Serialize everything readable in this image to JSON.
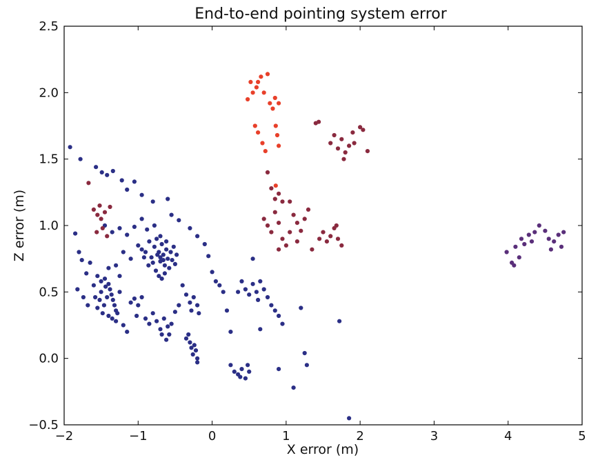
{
  "chart_data": {
    "type": "scatter",
    "title": "End-to-end pointing system error",
    "xlabel": "X error (m)",
    "ylabel": "Z error (m)",
    "xlim": [
      -2,
      5
    ],
    "ylim": [
      -0.5,
      2.5
    ],
    "xticks": [
      -2,
      -1,
      0,
      1,
      2,
      3,
      4,
      5
    ],
    "yticks": [
      -0.5,
      0.0,
      0.5,
      1.0,
      1.5,
      2.0,
      2.5
    ],
    "xtick_labels": [
      "−2",
      "−1",
      "0",
      "1",
      "2",
      "3",
      "4",
      "5"
    ],
    "ytick_labels": [
      "−0.5",
      "0.0",
      "0.5",
      "1.0",
      "1.5",
      "2.0",
      "2.5"
    ],
    "grid": false,
    "colors": {
      "blue": "#2b2f86",
      "purple": "#5a2f7a",
      "maroon": "#8a2a3f",
      "red": "#e8402a"
    },
    "series": [
      {
        "color": "#2b2f86",
        "points": [
          [
            -1.92,
            1.59
          ],
          [
            -1.78,
            1.5
          ],
          [
            -1.85,
            0.94
          ],
          [
            -1.8,
            0.8
          ],
          [
            -1.76,
            0.74
          ],
          [
            -1.7,
            0.64
          ],
          [
            -1.82,
            0.52
          ],
          [
            -1.74,
            0.46
          ],
          [
            -1.68,
            0.4
          ],
          [
            -1.65,
            0.72
          ],
          [
            -1.57,
            1.44
          ],
          [
            -1.49,
            1.4
          ],
          [
            -1.42,
            1.38
          ],
          [
            -1.34,
            1.41
          ],
          [
            -1.22,
            1.34
          ],
          [
            -1.15,
            1.27
          ],
          [
            -1.05,
            1.33
          ],
          [
            -0.95,
            1.23
          ],
          [
            -0.8,
            1.18
          ],
          [
            -0.6,
            1.2
          ],
          [
            -0.55,
            1.08
          ],
          [
            -0.45,
            1.04
          ],
          [
            -0.3,
            0.98
          ],
          [
            -0.2,
            0.92
          ],
          [
            -0.1,
            0.86
          ],
          [
            -0.05,
            0.77
          ],
          [
            -1.45,
            1.0
          ],
          [
            -1.35,
            0.95
          ],
          [
            -1.25,
            0.98
          ],
          [
            -1.15,
            0.93
          ],
          [
            -1.05,
            0.99
          ],
          [
            -0.95,
            1.05
          ],
          [
            -0.88,
            0.97
          ],
          [
            -0.78,
            1.0
          ],
          [
            -0.7,
            0.92
          ],
          [
            -0.62,
            0.88
          ],
          [
            -1.0,
            0.85
          ],
          [
            -0.95,
            0.82
          ],
          [
            -0.9,
            0.8
          ],
          [
            -0.85,
            0.88
          ],
          [
            -0.82,
            0.76
          ],
          [
            -0.78,
            0.84
          ],
          [
            -0.75,
            0.9
          ],
          [
            -0.72,
            0.8
          ],
          [
            -0.7,
            0.73
          ],
          [
            -0.68,
            0.86
          ],
          [
            -0.66,
            0.78
          ],
          [
            -0.64,
            0.7
          ],
          [
            -0.62,
            0.82
          ],
          [
            -0.6,
            0.75
          ],
          [
            -0.58,
            0.68
          ],
          [
            -0.56,
            0.8
          ],
          [
            -0.54,
            0.74
          ],
          [
            -0.52,
            0.84
          ],
          [
            -0.5,
            0.71
          ],
          [
            -0.48,
            0.78
          ],
          [
            -0.8,
            0.72
          ],
          [
            -0.76,
            0.66
          ],
          [
            -0.72,
            0.62
          ],
          [
            -0.68,
            0.6
          ],
          [
            -0.64,
            0.64
          ],
          [
            -0.86,
            0.7
          ],
          [
            -0.92,
            0.76
          ],
          [
            -0.74,
            0.78
          ],
          [
            -0.7,
            0.76
          ],
          [
            -0.66,
            0.74
          ],
          [
            -1.2,
            0.8
          ],
          [
            -1.1,
            0.75
          ],
          [
            -1.3,
            0.7
          ],
          [
            -1.25,
            0.62
          ],
          [
            -1.4,
            0.68
          ],
          [
            -1.55,
            0.62
          ],
          [
            -1.6,
            0.55
          ],
          [
            -1.5,
            0.58
          ],
          [
            -1.45,
            0.6
          ],
          [
            -1.4,
            0.56
          ],
          [
            -1.38,
            0.52
          ],
          [
            -1.36,
            0.48
          ],
          [
            -1.34,
            0.44
          ],
          [
            -1.32,
            0.4
          ],
          [
            -1.3,
            0.36
          ],
          [
            -1.42,
            0.46
          ],
          [
            -1.46,
            0.4
          ],
          [
            -1.48,
            0.34
          ],
          [
            -1.4,
            0.32
          ],
          [
            -1.35,
            0.3
          ],
          [
            -1.3,
            0.28
          ],
          [
            -1.28,
            0.34
          ],
          [
            -1.25,
            0.5
          ],
          [
            -1.5,
            0.5
          ],
          [
            -1.52,
            0.44
          ],
          [
            -1.55,
            0.38
          ],
          [
            -1.58,
            0.46
          ],
          [
            -1.44,
            0.54
          ],
          [
            -1.2,
            0.25
          ],
          [
            -1.15,
            0.2
          ],
          [
            -1.05,
            0.45
          ],
          [
            -1.0,
            0.4
          ],
          [
            -0.95,
            0.46
          ],
          [
            -1.1,
            0.42
          ],
          [
            -1.02,
            0.32
          ],
          [
            -0.9,
            0.3
          ],
          [
            -0.85,
            0.26
          ],
          [
            -0.8,
            0.34
          ],
          [
            -0.75,
            0.28
          ],
          [
            -0.7,
            0.22
          ],
          [
            -0.65,
            0.3
          ],
          [
            -0.6,
            0.24
          ],
          [
            -0.58,
            0.18
          ],
          [
            -0.55,
            0.26
          ],
          [
            -0.62,
            0.14
          ],
          [
            -0.68,
            0.18
          ],
          [
            -0.4,
            0.55
          ],
          [
            -0.35,
            0.48
          ],
          [
            -0.3,
            0.42
          ],
          [
            -0.28,
            0.36
          ],
          [
            -0.25,
            0.46
          ],
          [
            -0.2,
            0.4
          ],
          [
            -0.18,
            0.34
          ],
          [
            -0.45,
            0.4
          ],
          [
            -0.5,
            0.35
          ],
          [
            -0.35,
            0.15
          ],
          [
            -0.3,
            0.12
          ],
          [
            -0.28,
            0.08
          ],
          [
            -0.26,
            0.03
          ],
          [
            -0.24,
            0.1
          ],
          [
            -0.22,
            0.06
          ],
          [
            -0.2,
            0.0
          ],
          [
            -0.32,
            0.18
          ],
          [
            -0.2,
            -0.03
          ],
          [
            0.0,
            0.65
          ],
          [
            0.05,
            0.58
          ],
          [
            0.1,
            0.55
          ],
          [
            0.15,
            0.5
          ],
          [
            0.2,
            0.36
          ],
          [
            0.25,
            0.2
          ],
          [
            0.35,
            0.5
          ],
          [
            0.4,
            0.58
          ],
          [
            0.45,
            0.52
          ],
          [
            0.5,
            0.48
          ],
          [
            0.55,
            0.56
          ],
          [
            0.6,
            0.5
          ],
          [
            0.62,
            0.44
          ],
          [
            0.65,
            0.58
          ],
          [
            0.7,
            0.52
          ],
          [
            0.75,
            0.46
          ],
          [
            0.8,
            0.4
          ],
          [
            0.85,
            0.36
          ],
          [
            0.9,
            0.32
          ],
          [
            0.95,
            0.26
          ],
          [
            0.55,
            0.75
          ],
          [
            0.65,
            0.22
          ],
          [
            0.25,
            -0.05
          ],
          [
            0.3,
            -0.1
          ],
          [
            0.35,
            -0.12
          ],
          [
            0.4,
            -0.08
          ],
          [
            0.45,
            -0.15
          ],
          [
            0.5,
            -0.1
          ],
          [
            0.38,
            -0.14
          ],
          [
            0.48,
            -0.05
          ],
          [
            0.9,
            -0.08
          ],
          [
            1.1,
            -0.22
          ],
          [
            1.25,
            0.04
          ],
          [
            1.28,
            -0.05
          ],
          [
            1.2,
            0.38
          ],
          [
            1.72,
            0.28
          ],
          [
            1.85,
            -0.45
          ]
        ]
      },
      {
        "color": "#5a2f7a",
        "points": [
          [
            3.98,
            0.8
          ],
          [
            4.05,
            0.72
          ],
          [
            4.1,
            0.84
          ],
          [
            4.15,
            0.76
          ],
          [
            4.18,
            0.9
          ],
          [
            4.22,
            0.86
          ],
          [
            4.28,
            0.93
          ],
          [
            4.32,
            0.88
          ],
          [
            4.36,
            0.95
          ],
          [
            4.42,
            1.0
          ],
          [
            4.5,
            0.96
          ],
          [
            4.55,
            0.9
          ],
          [
            4.58,
            0.82
          ],
          [
            4.62,
            0.88
          ],
          [
            4.68,
            0.93
          ],
          [
            4.72,
            0.84
          ],
          [
            4.75,
            0.95
          ],
          [
            4.08,
            0.7
          ]
        ]
      },
      {
        "color": "#8a2a3f",
        "points": [
          [
            -1.67,
            1.32
          ],
          [
            -1.6,
            1.12
          ],
          [
            -1.55,
            1.08
          ],
          [
            -1.52,
            1.15
          ],
          [
            -1.5,
            1.05
          ],
          [
            -1.48,
            0.98
          ],
          [
            -1.45,
            1.1
          ],
          [
            -1.42,
            0.92
          ],
          [
            -1.38,
            1.14
          ],
          [
            -1.56,
            0.95
          ],
          [
            0.75,
            1.4
          ],
          [
            0.8,
            1.28
          ],
          [
            0.85,
            1.2
          ],
          [
            0.9,
            1.24
          ],
          [
            0.95,
            1.18
          ],
          [
            0.7,
            1.05
          ],
          [
            0.75,
            1.0
          ],
          [
            0.8,
            0.95
          ],
          [
            0.85,
            1.1
          ],
          [
            0.9,
            1.02
          ],
          [
            0.95,
            0.9
          ],
          [
            1.0,
            0.85
          ],
          [
            1.05,
            0.95
          ],
          [
            1.1,
            1.08
          ],
          [
            1.15,
            1.02
          ],
          [
            1.2,
            0.96
          ],
          [
            1.25,
            1.05
          ],
          [
            1.3,
            1.12
          ],
          [
            1.05,
            1.18
          ],
          [
            1.15,
            0.88
          ],
          [
            0.9,
            0.82
          ],
          [
            1.35,
            0.82
          ],
          [
            1.45,
            0.9
          ],
          [
            1.5,
            0.95
          ],
          [
            1.55,
            0.88
          ],
          [
            1.6,
            0.92
          ],
          [
            1.65,
            0.98
          ],
          [
            1.7,
            0.9
          ],
          [
            1.75,
            0.85
          ],
          [
            1.68,
            1.0
          ],
          [
            1.6,
            1.62
          ],
          [
            1.65,
            1.68
          ],
          [
            1.7,
            1.58
          ],
          [
            1.75,
            1.65
          ],
          [
            1.8,
            1.55
          ],
          [
            1.85,
            1.6
          ],
          [
            1.9,
            1.7
          ],
          [
            1.78,
            1.5
          ],
          [
            2.0,
            1.74
          ],
          [
            2.1,
            1.56
          ],
          [
            1.4,
            1.77
          ],
          [
            1.44,
            1.78
          ],
          [
            1.92,
            1.62
          ],
          [
            2.04,
            1.72
          ]
        ]
      },
      {
        "color": "#e8402a",
        "points": [
          [
            0.48,
            1.95
          ],
          [
            0.52,
            2.08
          ],
          [
            0.55,
            2.0
          ],
          [
            0.6,
            2.04
          ],
          [
            0.62,
            2.08
          ],
          [
            0.66,
            2.12
          ],
          [
            0.7,
            2.0
          ],
          [
            0.75,
            2.14
          ],
          [
            0.78,
            1.92
          ],
          [
            0.82,
            1.88
          ],
          [
            0.85,
            1.96
          ],
          [
            0.9,
            1.92
          ],
          [
            0.58,
            1.75
          ],
          [
            0.62,
            1.7
          ],
          [
            0.68,
            1.62
          ],
          [
            0.72,
            1.56
          ],
          [
            0.86,
            1.75
          ],
          [
            0.88,
            1.68
          ],
          [
            0.9,
            1.6
          ],
          [
            0.86,
            1.3
          ]
        ]
      }
    ]
  }
}
